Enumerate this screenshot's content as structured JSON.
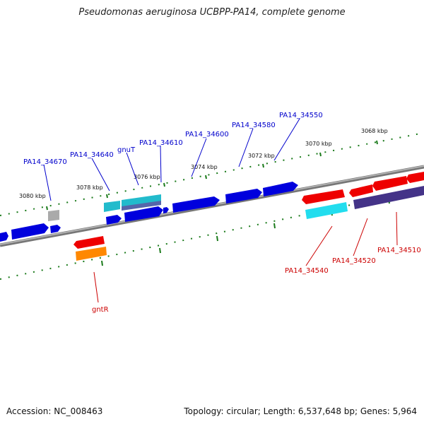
{
  "title": "Pseudomonas aeruginosa UCBPP-PA14, complete genome",
  "footer": {
    "accession": "Accession: NC_008463",
    "summary": "Topology: circular; Length: 6,537,648 bp; Genes: 5,964"
  },
  "scale_labels": [
    {
      "text": "3080 kbp"
    },
    {
      "text": "3078 kbp"
    },
    {
      "text": "3076 kbp"
    },
    {
      "text": "3074 kbp"
    },
    {
      "text": "3072 kbp"
    },
    {
      "text": "3070 kbp"
    },
    {
      "text": "3068 kbp"
    }
  ],
  "gene_labels": [
    {
      "text": "PA14_34670",
      "color": "#0000cc"
    },
    {
      "text": "PA14_34640",
      "color": "#0000cc"
    },
    {
      "text": "gnuT",
      "color": "#0000cc"
    },
    {
      "text": "PA14_34610",
      "color": "#0000cc"
    },
    {
      "text": "PA14_34600",
      "color": "#0000cc"
    },
    {
      "text": "PA14_34580",
      "color": "#0000cc"
    },
    {
      "text": "PA14_34550",
      "color": "#0000cc"
    },
    {
      "text": "PA14_34540",
      "color": "#cc0000"
    },
    {
      "text": "PA14_34520",
      "color": "#cc0000"
    },
    {
      "text": "PA14_34510",
      "color": "#cc0000"
    },
    {
      "text": "gntR",
      "color": "#cc0000"
    }
  ],
  "colors": {
    "forward_gene": "#0000ee",
    "reverse_gene": "#ee0000",
    "cyan_feature": "#22cccc",
    "slate_feature": "#5566aa",
    "purple_feature": "#443388",
    "orange_feature": "#ff8800",
    "gray_feature": "#aaaaaa",
    "tick": "#1a7a1a",
    "backbone": "#808080"
  }
}
